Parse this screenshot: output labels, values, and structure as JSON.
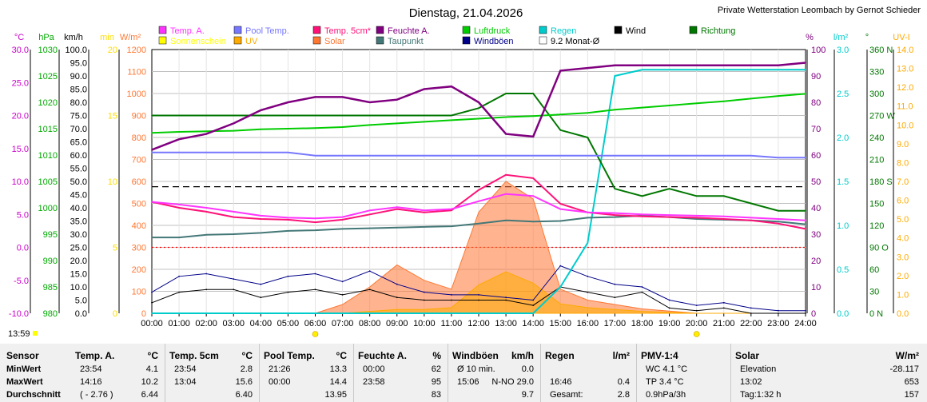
{
  "header": {
    "title": "Dienstag, 21.04.2026",
    "station": "Private Wetterstation Leombach by Gernot Schieder",
    "time_stamp": "13:59"
  },
  "legend": [
    {
      "label": "Temp. A.",
      "color": "#ff33ff"
    },
    {
      "label": "Pool Temp.",
      "color": "#7777ff"
    },
    {
      "label": "Temp. 5cm*",
      "color": "#ff1177"
    },
    {
      "label": "Feuchte A.",
      "color": "#800080"
    },
    {
      "label": "Luftdruck",
      "color": "#00cc00"
    },
    {
      "label": "Regen",
      "color": "#00cccc"
    },
    {
      "label": "Wind",
      "color": "#000000"
    },
    {
      "label": "Richtung",
      "color": "#007700"
    },
    {
      "label": "Sonnenschein",
      "color": "#ffff00"
    },
    {
      "label": "UV",
      "color": "#ffaa00"
    },
    {
      "label": "Solar",
      "color": "#ff7733"
    },
    {
      "label": "Taupunkt",
      "color": "#447777"
    },
    {
      "label": "Windböen",
      "color": "#000088"
    },
    {
      "label": "9.2 Monat-Ø",
      "color": "#ffffff"
    }
  ],
  "axes": {
    "temp": {
      "unit": "°C",
      "color": "#cc00cc",
      "ticks": [
        "30.0",
        "25.0",
        "20.0",
        "15.0",
        "10.0",
        "5.0",
        "0.0",
        "-5.0",
        "-10.0"
      ]
    },
    "hpa": {
      "unit": "hPa",
      "color": "#00aa00",
      "ticks": [
        "1030",
        "1025",
        "1020",
        "1015",
        "1010",
        "1005",
        "1000",
        "995",
        "990",
        "985",
        "980"
      ]
    },
    "kmh": {
      "unit": "km/h",
      "color": "#000000",
      "ticks": [
        "100.0",
        "95.0",
        "90.0",
        "85.0",
        "80.0",
        "75.0",
        "70.0",
        "65.0",
        "60.0",
        "55.0",
        "50.0",
        "45.0",
        "40.0",
        "35.0",
        "30.0",
        "25.0",
        "20.0",
        "15.0",
        "10.0",
        "5.0",
        "0.0"
      ]
    },
    "sun": {
      "unit": "min",
      "color": "#ffdd00",
      "ticks": [
        "20",
        "15",
        "10",
        "5",
        "0"
      ]
    },
    "solar": {
      "unit": "W/m²",
      "color": "#ff7733",
      "ticks": [
        "1200",
        "1100",
        "1000",
        "900",
        "800",
        "700",
        "600",
        "500",
        "400",
        "300",
        "200",
        "100",
        "0"
      ]
    },
    "hum": {
      "unit": "%",
      "color": "#800080",
      "ticks": [
        "100",
        "90",
        "80",
        "70",
        "60",
        "50",
        "40",
        "30",
        "20",
        "10",
        "0"
      ]
    },
    "rain": {
      "unit": "l/m²",
      "color": "#00cccc",
      "ticks": [
        "3.0",
        "2.5",
        "2.0",
        "1.5",
        "1.0",
        "0.5",
        "0.0"
      ]
    },
    "dir": {
      "unit": "°",
      "color": "#007700",
      "ticks": [
        "360 N",
        "330",
        "300",
        "270 W",
        "240",
        "210",
        "180 S",
        "150",
        "120",
        "90 O",
        "60",
        "30",
        "0 N"
      ]
    },
    "uv": {
      "unit": "UV-I",
      "color": "#ffaa00",
      "ticks": [
        "14.0",
        "13.0",
        "12.0",
        "11.0",
        "10.0",
        "9.0",
        "8.0",
        "7.0",
        "6.0",
        "5.0",
        "4.0",
        "3.0",
        "2.0",
        "1.0",
        "0.0"
      ]
    },
    "time_ticks": [
      "00:00",
      "01:00",
      "02:00",
      "03:00",
      "04:00",
      "05:00",
      "06:00",
      "07:00",
      "08:00",
      "09:00",
      "10:00",
      "11:00",
      "12:00",
      "13:00",
      "14:00",
      "15:00",
      "16:00",
      "17:00",
      "18:00",
      "19:00",
      "20:00",
      "21:00",
      "22:00",
      "23:00",
      "24:00"
    ]
  },
  "chart_data": {
    "type": "line",
    "x_hours": [
      0,
      1,
      2,
      3,
      4,
      5,
      6,
      7,
      8,
      9,
      10,
      11,
      12,
      13,
      14,
      15,
      16,
      17,
      18,
      19,
      20,
      21,
      22,
      23,
      24
    ],
    "series": [
      {
        "name": "Temp. A.",
        "unit": "°C",
        "values": [
          6.9,
          6.5,
          6.0,
          5.4,
          4.8,
          4.5,
          4.4,
          4.6,
          5.6,
          6.1,
          5.6,
          5.8,
          7.0,
          8.1,
          7.8,
          5.8,
          5.3,
          5.2,
          5.0,
          4.9,
          4.8,
          4.7,
          4.5,
          4.3,
          4.1
        ]
      },
      {
        "name": "Temp. 5cm*",
        "unit": "°C",
        "values": [
          6.9,
          6.0,
          5.4,
          4.6,
          4.3,
          4.2,
          3.8,
          4.2,
          5.0,
          5.8,
          5.3,
          5.6,
          8.7,
          11.0,
          10.5,
          6.6,
          5.3,
          4.9,
          4.7,
          4.6,
          4.5,
          4.3,
          4.1,
          3.6,
          2.8
        ]
      },
      {
        "name": "Pool Temp.",
        "unit": "°C",
        "values": [
          14.4,
          14.4,
          14.4,
          14.4,
          14.4,
          14.4,
          13.9,
          13.9,
          13.9,
          13.9,
          13.9,
          13.9,
          13.9,
          13.9,
          13.9,
          13.9,
          13.9,
          13.9,
          13.9,
          13.9,
          13.9,
          13.9,
          13.9,
          13.6,
          13.6
        ]
      },
      {
        "name": "Taupunkt",
        "unit": "°C",
        "values": [
          1.5,
          1.5,
          1.9,
          2.0,
          2.2,
          2.5,
          2.6,
          2.8,
          2.9,
          3.0,
          3.1,
          3.2,
          3.6,
          4.1,
          3.9,
          4.0,
          4.5,
          4.6,
          4.8,
          4.6,
          4.3,
          4.2,
          4.1,
          3.9,
          3.5
        ]
      },
      {
        "name": "Feuchte A.",
        "unit": "%",
        "values": [
          62,
          66,
          68,
          72,
          77,
          80,
          82,
          82,
          80,
          81,
          85,
          86,
          80,
          68,
          67,
          92,
          93,
          94,
          94,
          94,
          94,
          94,
          94,
          94,
          95
        ]
      },
      {
        "name": "Luftdruck",
        "unit": "hPa",
        "values": [
          1014.2,
          1014.4,
          1014.5,
          1014.6,
          1014.9,
          1015.0,
          1015.1,
          1015.3,
          1015.7,
          1016.0,
          1016.3,
          1016.6,
          1016.9,
          1017.2,
          1017.4,
          1017.7,
          1018.0,
          1018.6,
          1019.0,
          1019.4,
          1019.8,
          1020.2,
          1020.7,
          1021.2,
          1021.6
        ]
      },
      {
        "name": "Solar",
        "unit": "W/m²",
        "values": [
          0,
          0,
          0,
          0,
          0,
          0,
          0,
          40,
          120,
          220,
          150,
          110,
          460,
          600,
          520,
          110,
          60,
          40,
          20,
          10,
          0,
          0,
          0,
          0,
          0
        ]
      },
      {
        "name": "UV",
        "unit": "UV-I",
        "values": [
          0,
          0,
          0,
          0,
          0,
          0,
          0,
          0,
          0.1,
          0.2,
          0.2,
          0.3,
          1.5,
          2.2,
          1.6,
          0.5,
          0.3,
          0.2,
          0.1,
          0.05,
          0,
          0,
          0,
          0,
          0
        ]
      },
      {
        "name": "Wind",
        "unit": "km/h",
        "values": [
          4,
          8,
          9,
          9,
          6,
          8,
          9,
          7,
          9,
          6,
          5,
          5,
          5,
          5,
          3,
          10,
          8,
          6,
          8,
          2,
          1,
          2,
          0,
          0,
          0
        ]
      },
      {
        "name": "Windböen",
        "unit": "km/h",
        "values": [
          8,
          14,
          15,
          13,
          11,
          14,
          15,
          12,
          16,
          11,
          8,
          7,
          7,
          6,
          5,
          18,
          14,
          11,
          10,
          5,
          3,
          4,
          2,
          1,
          1
        ]
      },
      {
        "name": "Regen",
        "unit": "l/m²",
        "values": [
          0,
          0,
          0,
          0,
          0,
          0,
          0,
          0,
          0,
          0,
          0,
          0,
          0,
          0,
          0,
          0.3,
          0.8,
          2.7,
          2.77,
          2.77,
          2.77,
          2.77,
          2.77,
          2.77,
          2.77
        ]
      },
      {
        "name": "Richtung",
        "unit": "°",
        "values": [
          270,
          270,
          270,
          270,
          270,
          270,
          270,
          270,
          270,
          270,
          270,
          270,
          280,
          300,
          300,
          250,
          240,
          170,
          160,
          170,
          160,
          160,
          150,
          140,
          140
        ]
      }
    ],
    "reference_lines": [
      {
        "name": "9.2 Monat-Ø",
        "value": 9.2,
        "unit": "°C",
        "style": "dashed",
        "color": "#000000"
      },
      {
        "name": "0 °C",
        "value": 0,
        "unit": "°C",
        "style": "dotted",
        "color": "#ff0000"
      }
    ],
    "sunrise": "06:00",
    "sunset": "20:00",
    "ylim_temp": [
      -10,
      30
    ],
    "grid": "on",
    "legend_placement": "top"
  },
  "table": {
    "row_labels": [
      "Sensor",
      "MinWert",
      "MaxWert",
      "Durchschnitt"
    ],
    "cols": [
      {
        "hdr": "Temp. A.",
        "unit": "°C",
        "rows": [
          [
            "23:54",
            "4.1"
          ],
          [
            "14:16",
            "10.2"
          ],
          [
            "( - 2.76 )",
            "6.44"
          ]
        ]
      },
      {
        "hdr": "Temp. 5cm",
        "unit": "°C",
        "rows": [
          [
            "23:54",
            "2.8"
          ],
          [
            "13:04",
            "15.6"
          ],
          [
            "",
            "6.40"
          ]
        ]
      },
      {
        "hdr": "Pool Temp.",
        "unit": "°C",
        "rows": [
          [
            "21:26",
            "13.3"
          ],
          [
            "00:00",
            "14.4"
          ],
          [
            "",
            "13.95"
          ]
        ]
      },
      {
        "hdr": "Feuchte A.",
        "unit": "%",
        "rows": [
          [
            "00:00",
            "62"
          ],
          [
            "23:58",
            "95"
          ],
          [
            "",
            "83"
          ]
        ]
      },
      {
        "hdr": "Windböen",
        "unit": "km/h",
        "rows": [
          [
            "Ø 10 min.",
            "0.0"
          ],
          [
            "15:06",
            "N-NO 29.0"
          ],
          [
            "",
            "9.7"
          ]
        ]
      },
      {
        "hdr": "Regen",
        "unit": "l/m²",
        "rows": [
          [
            "",
            ""
          ],
          [
            "16:46",
            "0.4"
          ],
          [
            "Gesamt:",
            "2.8"
          ]
        ]
      },
      {
        "hdr": "PMV-1:4",
        "unit": "",
        "rows": [
          [
            "WC 4.1 °C",
            ""
          ],
          [
            "TP 3.4 °C",
            ""
          ],
          [
            "0.9hPa/3h",
            ""
          ]
        ]
      },
      {
        "hdr": "Solar",
        "unit": "W/m²",
        "rows": [
          [
            "Elevation",
            "-28.117"
          ],
          [
            "13:02",
            "653"
          ],
          [
            "Tag:1:32 h",
            "157"
          ]
        ]
      }
    ]
  }
}
